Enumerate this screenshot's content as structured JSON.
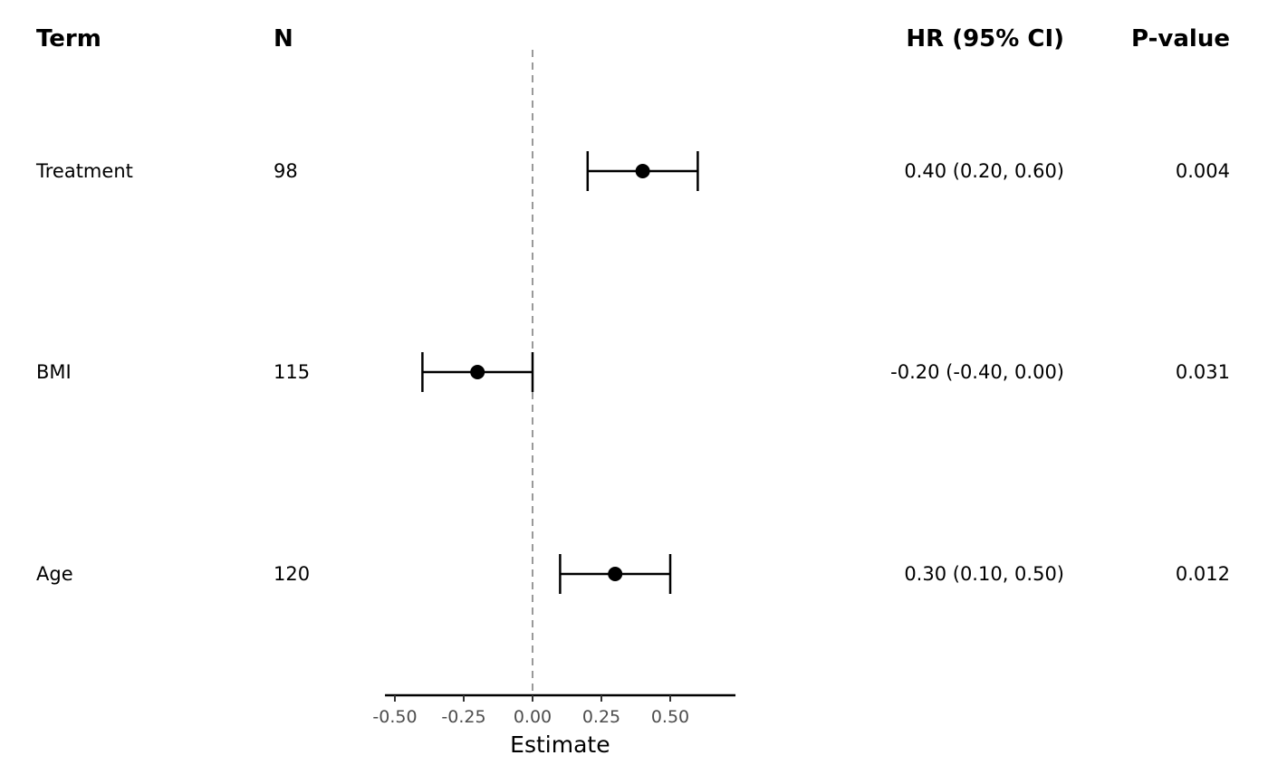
{
  "chart_data": {
    "type": "forest",
    "xlabel": "Estimate",
    "xlim": [
      -0.536,
      0.737
    ],
    "xticks": [
      -0.5,
      -0.25,
      0.0,
      0.25,
      0.5
    ],
    "xtick_labels": [
      "-0.50",
      "-0.25",
      "0.00",
      "0.25",
      "0.50"
    ],
    "reference_line": 0,
    "columns": {
      "term": "Term",
      "n": "N",
      "hr": "HR (95% CI)",
      "p": "P-value"
    },
    "rows": [
      {
        "term": "Treatment",
        "n": "98",
        "estimate": 0.4,
        "lower": 0.2,
        "upper": 0.6,
        "hr_text": "0.40 (0.20, 0.60)",
        "p": "0.004"
      },
      {
        "term": "BMI",
        "n": "115",
        "estimate": -0.2,
        "lower": -0.4,
        "upper": 0.0,
        "hr_text": "-0.20 (-0.40, 0.00)",
        "p": "0.031"
      },
      {
        "term": "Age",
        "n": "120",
        "estimate": 0.3,
        "lower": 0.1,
        "upper": 0.5,
        "hr_text": "0.30 (0.10, 0.50)",
        "p": "0.012"
      }
    ]
  }
}
